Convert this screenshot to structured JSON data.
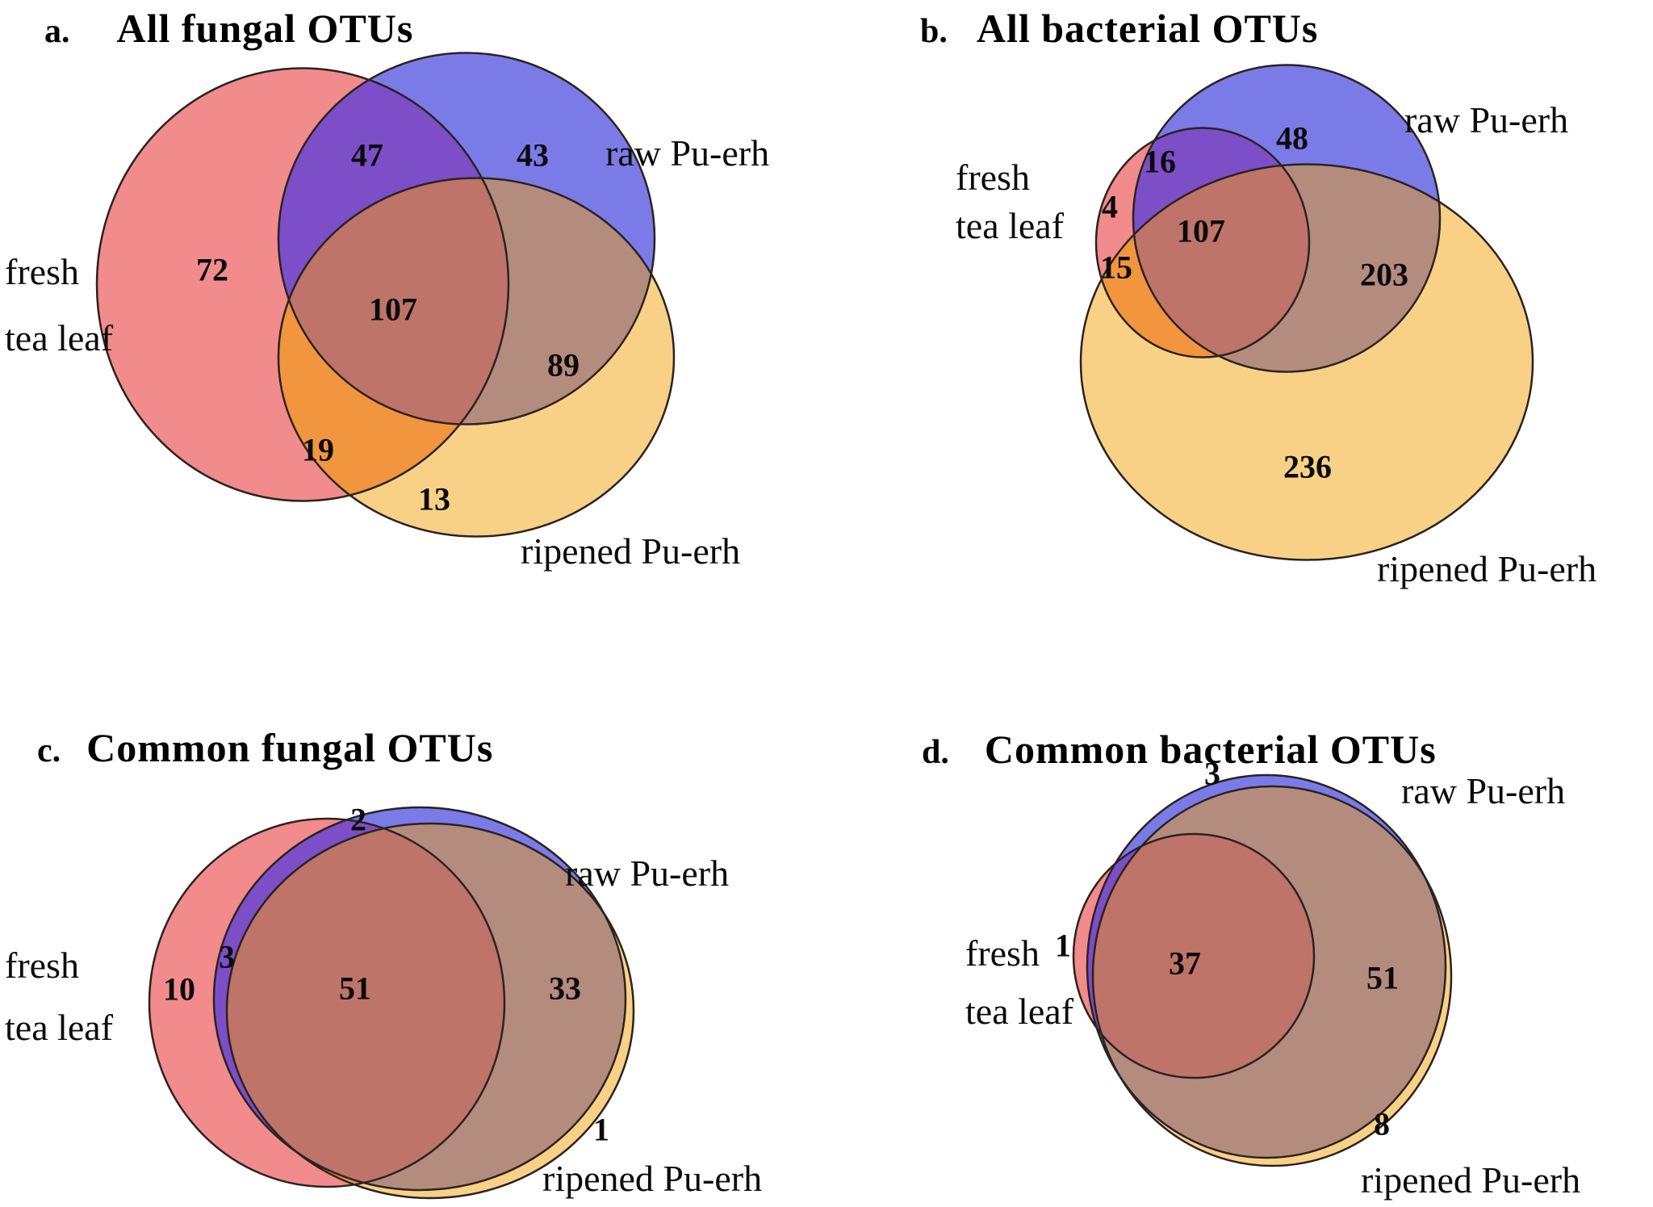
{
  "figure": {
    "colors": {
      "fresh": "#F28B8B",
      "raw": "#7B7BE8",
      "ripened": "#F8D186",
      "fresh_raw": "#7C4FC8",
      "fresh_ripened": "#F2953F",
      "raw_ripened": "#B48C7D",
      "all_three": "#BE7468",
      "outline": "#2A2320"
    },
    "set_names": [
      "fresh tea leaf",
      "raw Pu-erh",
      "ripened Pu-erh"
    ],
    "panels": [
      {
        "id": "a",
        "letter": "a.",
        "title": "All fungal OTUs",
        "labels": {
          "fresh_line1": "fresh",
          "fresh_line2": "tea leaf",
          "raw": "raw Pu-erh",
          "ripened": "ripened Pu-erh"
        },
        "counts": {
          "fresh_only": 72,
          "raw_only": 43,
          "ripened_only": 13,
          "fresh_raw": 47,
          "fresh_ripened": 19,
          "raw_ripened": 89,
          "all_three": 107
        }
      },
      {
        "id": "b",
        "letter": "b.",
        "title": "All bacterial OTUs",
        "labels": {
          "fresh_line1": "fresh",
          "fresh_line2": "tea leaf",
          "raw": "raw Pu-erh",
          "ripened": "ripened Pu-erh"
        },
        "counts": {
          "fresh_only": 4,
          "raw_only": 48,
          "ripened_only": 236,
          "fresh_raw": 16,
          "fresh_ripened": 15,
          "raw_ripened": 203,
          "all_three": 107
        }
      },
      {
        "id": "c",
        "letter": "c.",
        "title": "Common fungal OTUs",
        "labels": {
          "fresh_line1": "fresh",
          "fresh_line2": "tea leaf",
          "raw": "raw Pu-erh",
          "ripened": "ripened Pu-erh"
        },
        "counts": {
          "fresh_only": 10,
          "raw_only": 2,
          "ripened_only": 1,
          "fresh_raw": 3,
          "raw_ripened": 33,
          "all_three": 51
        }
      },
      {
        "id": "d",
        "letter": "d.",
        "title": "Common bacterial OTUs",
        "labels": {
          "fresh_line1": "fresh",
          "fresh_line2": "tea leaf",
          "raw": "raw Pu-erh",
          "ripened": "ripened Pu-erh"
        },
        "counts": {
          "fresh_only": 1,
          "raw_only": 3,
          "ripened_only": 8,
          "raw_ripened": 51,
          "all_three": 37
        }
      }
    ]
  },
  "chart_data": [
    {
      "type": "venn",
      "title": "All fungal OTUs",
      "sets": [
        "fresh tea leaf",
        "raw Pu-erh",
        "ripened Pu-erh"
      ],
      "regions": {
        "fresh": 72,
        "raw": 43,
        "ripened": 13,
        "fresh&raw": 47,
        "fresh&ripened": 19,
        "raw&ripened": 89,
        "fresh&raw&ripened": 107
      }
    },
    {
      "type": "venn",
      "title": "All bacterial OTUs",
      "sets": [
        "fresh tea leaf",
        "raw Pu-erh",
        "ripened Pu-erh"
      ],
      "regions": {
        "fresh": 4,
        "raw": 48,
        "ripened": 236,
        "fresh&raw": 16,
        "fresh&ripened": 15,
        "raw&ripened": 203,
        "fresh&raw&ripened": 107
      }
    },
    {
      "type": "venn",
      "title": "Common fungal OTUs",
      "sets": [
        "fresh tea leaf",
        "raw Pu-erh",
        "ripened Pu-erh"
      ],
      "regions": {
        "fresh": 10,
        "raw": 2,
        "ripened": 1,
        "fresh&raw": 3,
        "raw&ripened": 33,
        "fresh&raw&ripened": 51
      }
    },
    {
      "type": "venn",
      "title": "Common bacterial OTUs",
      "sets": [
        "fresh tea leaf",
        "raw Pu-erh",
        "ripened Pu-erh"
      ],
      "regions": {
        "fresh": 1,
        "raw": 3,
        "ripened": 8,
        "raw&ripened": 51,
        "fresh&raw&ripened": 37
      }
    }
  ]
}
